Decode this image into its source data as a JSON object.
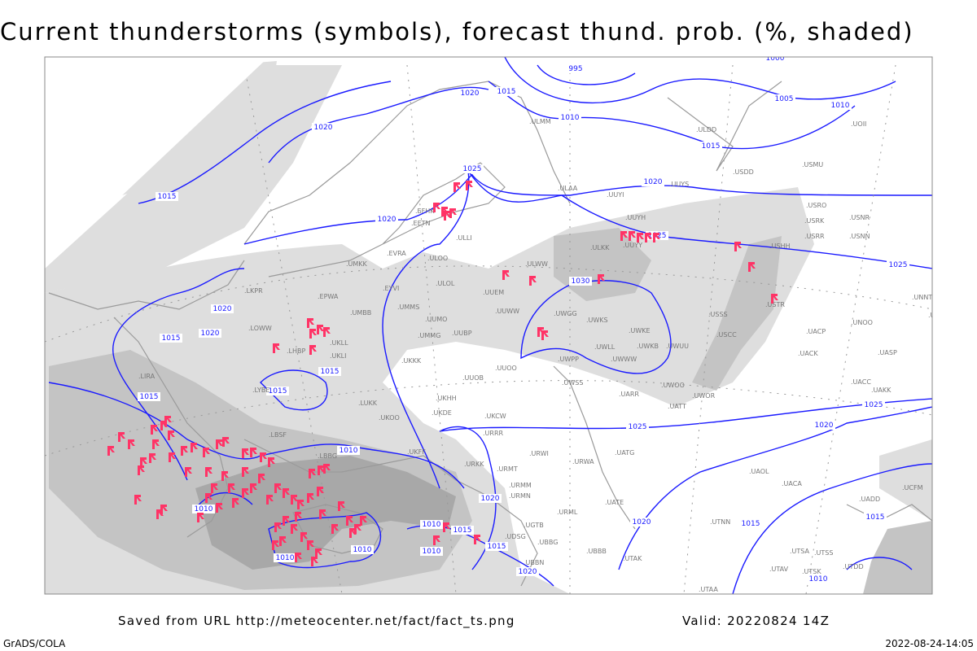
{
  "title": "Current thunderstorms (symbols), forecast thund. prob. (%, shaded)",
  "footer": {
    "saved": "Saved from URL http://meteocenter.net/fact/fact_ts.png",
    "valid": "Valid: 20220824 14Z",
    "software": "GrADS/COLA",
    "timestamp": "2022-08-24-14:05"
  },
  "colors": {
    "isobar": "#1a1aff",
    "storm_symbol": "#ff3366",
    "coast": "#9a9a9a",
    "shade_light": "#dedede",
    "shade_mid": "#c4c4c4",
    "shade_dark": "#a8a8a8"
  },
  "layers": {
    "isobars_units": "hPa",
    "storm_symbol_icon": "thunderstorm-flag-icon"
  },
  "isobar_labels": [
    "1020",
    "1015",
    "995",
    "1000",
    "1005",
    "1010",
    "1010",
    "1015",
    "1020",
    "1015",
    "1025",
    "1020",
    "1020",
    "1025",
    "1030",
    "1025",
    "1020",
    "1020",
    "1015",
    "1015",
    "1015",
    "1015",
    "1010",
    "1020",
    "1020",
    "1015",
    "1025",
    "1025",
    "1020",
    "1015",
    "1010",
    "1010",
    "1010",
    "1010",
    "1010",
    "1015",
    "1010",
    "1015",
    "1020"
  ],
  "stations": [
    "ULAA",
    "ULLI",
    "ULOO",
    "ULOL",
    "UUEM",
    "UUWW",
    "ULWW",
    "ULKK",
    "UUYY",
    "UUYH",
    "UUYS",
    "ULDD",
    "USDD",
    "USMU",
    "USRO",
    "USRK",
    "USNR",
    "USRR",
    "USNN",
    "USHH",
    "USTR",
    "UNNT",
    "UNBB",
    "UNOO",
    "UACP",
    "USCC",
    "USSS",
    "UACK",
    "UASP",
    "UACC",
    "UAKK",
    "UADD",
    "UATT",
    "UWOR",
    "UWOO",
    "UARR",
    "UWKS",
    "UWGG",
    "UWKE",
    "UWKB",
    "UWLL",
    "UWWW",
    "UWPP",
    "UWSS",
    "UWUU",
    "UUOO",
    "UUBP",
    "UUMO",
    "UMMG",
    "UUOB",
    "UKKK",
    "UKHH",
    "UKDE",
    "UKCW",
    "URRR",
    "URWI",
    "URWA",
    "UATG",
    "UAOL",
    "UACA",
    "URMT",
    "URMM",
    "URMN",
    "UBBB",
    "UGTB",
    "UDSG",
    "UBBG",
    "UBBN",
    "UTAK",
    "UTNN",
    "UTAA",
    "UTSA",
    "UTSS",
    "UTAV",
    "UTSK",
    "UTDD",
    "URML",
    "UATE",
    "LUKK",
    "UKOO",
    "UKFF",
    "URKK",
    "LBSF",
    "LBBG",
    "UMMS",
    "UMBB",
    "EPWA",
    "EYVI",
    "LKPR",
    "LOWW",
    "LHBP",
    "UKLL",
    "UKLI",
    "LYBE",
    "LIRA",
    "EFHK",
    "EETN",
    "EVRA",
    "UMKK",
    "UOII",
    "ULMM",
    "UUYI",
    "UCFM"
  ]
}
